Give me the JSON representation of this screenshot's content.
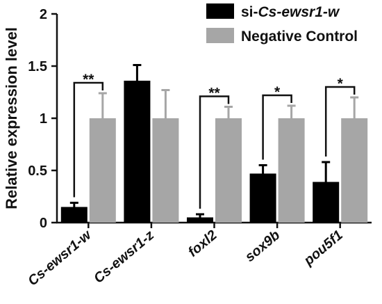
{
  "chart_data": {
    "type": "bar",
    "ylabel": "Relative expression level",
    "ylim": [
      0,
      2
    ],
    "yticks": [
      "0",
      "0.5",
      "1",
      "1.5",
      "2"
    ],
    "categories": [
      "Cs-ewsr1-w",
      "Cs-ewsr1-z",
      "foxl2",
      "sox9b",
      "pou5f1"
    ],
    "series": [
      {
        "name_prefix": "si-",
        "name_italic": "Cs-ewsr1-w",
        "color": "#000000",
        "values": [
          0.15,
          1.36,
          0.05,
          0.47,
          0.39
        ],
        "errors": [
          0.04,
          0.15,
          0.03,
          0.08,
          0.19
        ]
      },
      {
        "name": "Negative Control",
        "color": "#a6a6a6",
        "values": [
          1.0,
          1.0,
          1.0,
          1.0,
          1.0
        ],
        "errors": [
          0.24,
          0.27,
          0.11,
          0.12,
          0.2
        ]
      }
    ],
    "significance": [
      {
        "category_index": 0,
        "label": "**"
      },
      {
        "category_index": 2,
        "label": "**"
      },
      {
        "category_index": 3,
        "label": "*"
      },
      {
        "category_index": 4,
        "label": "*"
      }
    ],
    "legend_position": "top-right",
    "grid": false
  }
}
